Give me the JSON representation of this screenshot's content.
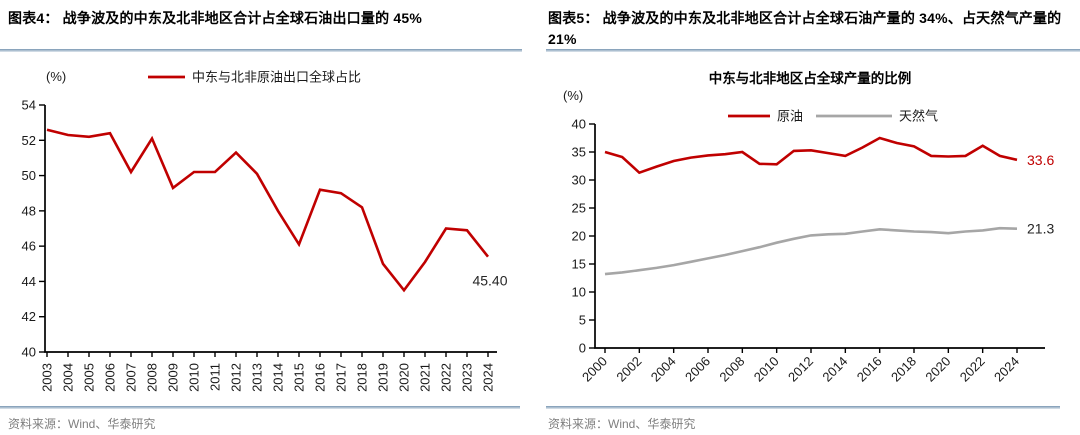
{
  "figures": [
    {
      "title": "图表4：  战争波及的中东及北非地区合计占全球石油出口量的 45%",
      "source": "资料来源：Wind、华泰研究"
    },
    {
      "title": "图表5：  战争波及的中东及北非地区合计占全球石油产量的 34%、占天然气产量的 21%",
      "source": "资料来源：Wind、华泰研究"
    }
  ],
  "colors": {
    "accent_red": "#c00000",
    "series_gray": "#a6a6a6",
    "divider_blue": "#8aa4bc",
    "source_text": "#7f7f7f",
    "axis_text": "#1a1a1a"
  },
  "chart_data": [
    {
      "type": "line",
      "title": "",
      "unit_label": "(%)",
      "xlabel": "",
      "ylabel": "(%)",
      "ylim": [
        40,
        54
      ],
      "ytick_step": 2,
      "grid": false,
      "legend_position": "top",
      "categories": [
        "2003",
        "2004",
        "2005",
        "2006",
        "2007",
        "2008",
        "2009",
        "2010",
        "2011",
        "2012",
        "2013",
        "2014",
        "2015",
        "2016",
        "2017",
        "2018",
        "2019",
        "2020",
        "2021",
        "2022",
        "2023",
        "2024"
      ],
      "series": [
        {
          "name": "中东与北非原油出口全球占比",
          "color": "#c00000",
          "values": [
            52.6,
            52.3,
            52.2,
            52.4,
            50.2,
            52.1,
            49.3,
            50.2,
            50.2,
            51.3,
            50.1,
            48.0,
            46.1,
            49.2,
            49.0,
            48.2,
            45.0,
            43.5,
            45.1,
            47.0,
            46.9,
            45.4
          ],
          "end_label": "45.40",
          "end_label_color": "#262626"
        }
      ]
    },
    {
      "type": "line",
      "title": "中东与北非地区占全球产量的比例",
      "unit_label": "(%)",
      "xlabel": "",
      "ylabel": "(%)",
      "ylim": [
        0,
        40
      ],
      "ytick_step": 5,
      "grid": false,
      "legend_position": "top",
      "categories": [
        "2000",
        "2001",
        "2002",
        "2003",
        "2004",
        "2005",
        "2006",
        "2007",
        "2008",
        "2009",
        "2010",
        "2011",
        "2012",
        "2013",
        "2014",
        "2015",
        "2016",
        "2017",
        "2018",
        "2019",
        "2020",
        "2021",
        "2022",
        "2023",
        "2024"
      ],
      "series": [
        {
          "name": "原油",
          "color": "#c00000",
          "values": [
            35.0,
            34.1,
            31.3,
            32.4,
            33.4,
            34.0,
            34.4,
            34.6,
            35.0,
            32.9,
            32.8,
            35.2,
            35.3,
            34.8,
            34.3,
            35.8,
            37.5,
            36.6,
            36.0,
            34.3,
            34.2,
            34.3,
            36.1,
            34.3,
            33.6
          ],
          "end_label": "33.6",
          "end_label_color": "#c00000"
        },
        {
          "name": "天然气",
          "color": "#a6a6a6",
          "values": [
            13.2,
            13.5,
            13.9,
            14.3,
            14.8,
            15.4,
            16.0,
            16.6,
            17.3,
            18.0,
            18.8,
            19.5,
            20.1,
            20.3,
            20.4,
            20.8,
            21.2,
            21.0,
            20.8,
            20.7,
            20.5,
            20.8,
            21.0,
            21.4,
            21.3
          ],
          "end_label": "21.3",
          "end_label_color": "#262626"
        }
      ]
    }
  ]
}
